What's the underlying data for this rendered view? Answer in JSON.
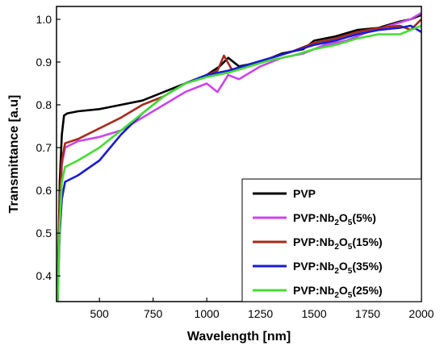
{
  "chart_data": {
    "type": "line",
    "xlabel": "Wavelength [nm]",
    "ylabel": "Transmittance [a.u]",
    "xlim": [
      300,
      2000
    ],
    "ylim": [
      0.34,
      1.03
    ],
    "x_ticks": [
      "500",
      "750",
      "1000",
      "1250",
      "1500",
      "1750",
      "2000"
    ],
    "y_ticks": [
      "0.4",
      "0.5",
      "0.6",
      "0.7",
      "0.8",
      "0.9",
      "1.0"
    ],
    "legend_position": "bottom-right",
    "series": [
      {
        "name": "PVP",
        "legend_base": "PVP",
        "legend_sub": "",
        "legend_suffix": "",
        "color": "#000000",
        "x": [
          305,
          315,
          325,
          335,
          350,
          400,
          500,
          600,
          700,
          800,
          900,
          1000,
          1060,
          1100,
          1150,
          1250,
          1350,
          1450,
          1500,
          1600,
          1700,
          1800,
          1900,
          1950,
          2000
        ],
        "y": [
          0.34,
          0.62,
          0.73,
          0.775,
          0.78,
          0.785,
          0.79,
          0.8,
          0.81,
          0.83,
          0.85,
          0.87,
          0.89,
          0.91,
          0.89,
          0.9,
          0.92,
          0.93,
          0.95,
          0.96,
          0.975,
          0.98,
          0.995,
          1.0,
          1.01
        ]
      },
      {
        "name": "PVP:Nb2O5(5%)",
        "legend_base": "PVP:Nb",
        "legend_sub": "2",
        "legend_suffix": "O",
        "legend_sub2": "5",
        "legend_tail": "(5%)",
        "color": "#cc44ee",
        "x": [
          305,
          315,
          325,
          340,
          400,
          500,
          600,
          700,
          800,
          900,
          1000,
          1050,
          1100,
          1150,
          1250,
          1350,
          1450,
          1550,
          1650,
          1750,
          1850,
          1950,
          2000
        ],
        "y": [
          0.34,
          0.55,
          0.66,
          0.7,
          0.715,
          0.725,
          0.74,
          0.77,
          0.8,
          0.83,
          0.85,
          0.83,
          0.87,
          0.86,
          0.89,
          0.91,
          0.92,
          0.94,
          0.95,
          0.97,
          0.985,
          1.0,
          1.015
        ]
      },
      {
        "name": "PVP:Nb2O5(15%)",
        "legend_base": "PVP:Nb",
        "legend_sub": "2",
        "legend_suffix": "O",
        "legend_sub2": "5",
        "legend_tail": "(15%)",
        "color": "#a52a1a",
        "x": [
          305,
          315,
          325,
          340,
          400,
          500,
          600,
          700,
          800,
          900,
          1000,
          1050,
          1080,
          1120,
          1200,
          1300,
          1400,
          1500,
          1600,
          1700,
          1800,
          1900,
          1950,
          2000
        ],
        "y": [
          0.34,
          0.58,
          0.67,
          0.71,
          0.72,
          0.745,
          0.77,
          0.8,
          0.82,
          0.85,
          0.87,
          0.88,
          0.915,
          0.88,
          0.895,
          0.91,
          0.925,
          0.945,
          0.955,
          0.97,
          0.98,
          0.985,
          0.975,
          1.0
        ]
      },
      {
        "name": "PVP:Nb2O5(35%)",
        "legend_base": "PVP:Nb",
        "legend_sub": "2",
        "legend_suffix": "O",
        "legend_sub2": "5",
        "legend_tail": "(35%)",
        "color": "#1a1ad6",
        "x": [
          305,
          315,
          325,
          340,
          400,
          500,
          600,
          700,
          800,
          900,
          1000,
          1100,
          1200,
          1300,
          1400,
          1500,
          1600,
          1700,
          1800,
          1900,
          1950,
          2000
        ],
        "y": [
          0.34,
          0.5,
          0.58,
          0.62,
          0.635,
          0.67,
          0.73,
          0.78,
          0.82,
          0.85,
          0.87,
          0.88,
          0.895,
          0.91,
          0.925,
          0.94,
          0.95,
          0.965,
          0.975,
          0.98,
          0.985,
          0.97
        ]
      },
      {
        "name": "PVP:Nb2O5(25%)",
        "legend_base": "PVP:Nb",
        "legend_sub": "2",
        "legend_suffix": "O",
        "legend_sub2": "5",
        "legend_tail": "(25%)",
        "color": "#44dd33",
        "x": [
          305,
          315,
          325,
          340,
          400,
          500,
          600,
          700,
          800,
          900,
          1000,
          1100,
          1200,
          1300,
          1400,
          1500,
          1600,
          1700,
          1800,
          1900,
          1950,
          2000
        ],
        "y": [
          0.34,
          0.52,
          0.62,
          0.655,
          0.67,
          0.7,
          0.74,
          0.78,
          0.82,
          0.85,
          0.865,
          0.875,
          0.89,
          0.905,
          0.915,
          0.93,
          0.94,
          0.955,
          0.965,
          0.965,
          0.975,
          0.985
        ]
      }
    ]
  }
}
